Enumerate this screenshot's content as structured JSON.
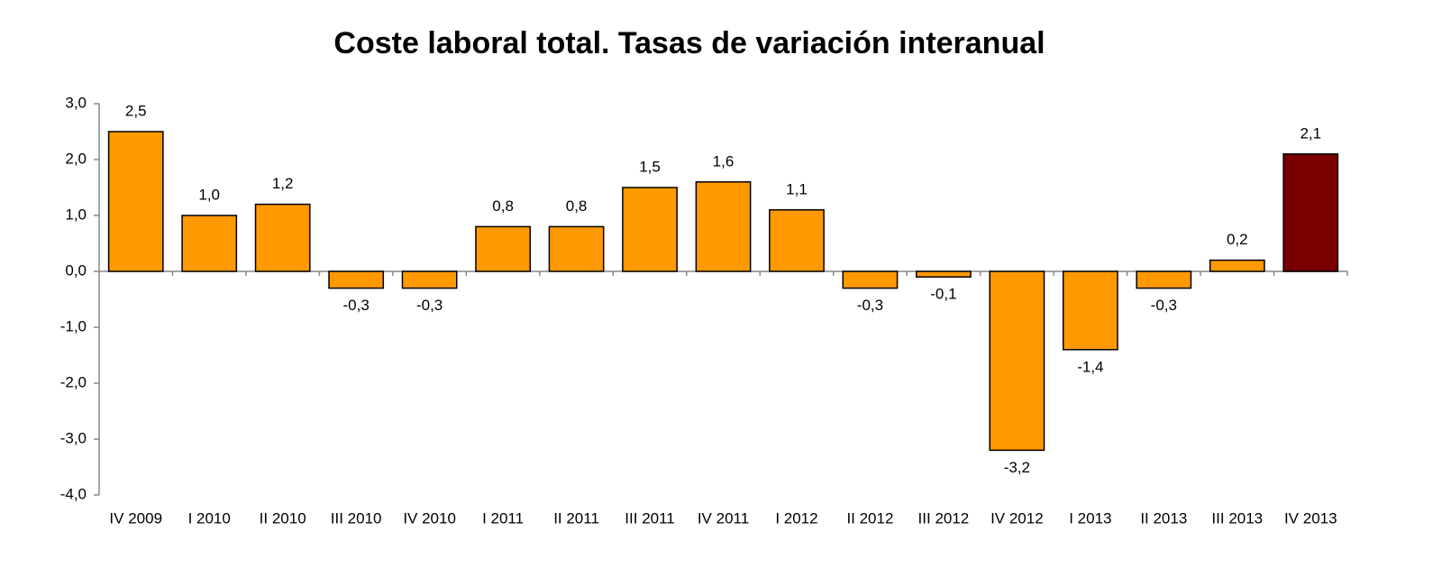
{
  "chart_data": {
    "type": "bar",
    "title": "Coste laboral total. Tasas de variación interanual",
    "categories": [
      "IV 2009",
      "I 2010",
      "II 2010",
      "III 2010",
      "IV 2010",
      "I 2011",
      "II 2011",
      "III 2011",
      "IV 2011",
      "I 2012",
      "II 2012",
      "III 2012",
      "IV 2012",
      "I 2013",
      "II 2013",
      "III 2013",
      "IV 2013"
    ],
    "values": [
      2.5,
      1.0,
      1.2,
      -0.3,
      -0.3,
      0.8,
      0.8,
      1.5,
      1.6,
      1.1,
      -0.3,
      -0.1,
      -3.2,
      -1.4,
      -0.3,
      0.2,
      2.1
    ],
    "value_labels": [
      "2,5",
      "1,0",
      "1,2",
      "-0,3",
      "-0,3",
      "0,8",
      "0,8",
      "1,5",
      "1,6",
      "1,1",
      "-0,3",
      "-0,1",
      "-3,2",
      "-1,4",
      "-0,3",
      "0,2",
      "2,1"
    ],
    "colors": [
      "#ff9900",
      "#ff9900",
      "#ff9900",
      "#ff9900",
      "#ff9900",
      "#ff9900",
      "#ff9900",
      "#ff9900",
      "#ff9900",
      "#ff9900",
      "#ff9900",
      "#ff9900",
      "#ff9900",
      "#ff9900",
      "#ff9900",
      "#ff9900",
      "#7a0000"
    ],
    "ylim": [
      -4,
      3
    ],
    "yticks": [
      {
        "value": -4,
        "label": "-4,0"
      },
      {
        "value": -3,
        "label": "-3,0"
      },
      {
        "value": -2,
        "label": "-2,0"
      },
      {
        "value": -1,
        "label": "-1,0"
      },
      {
        "value": 0,
        "label": "0,0"
      },
      {
        "value": 1,
        "label": "1,0"
      },
      {
        "value": 2,
        "label": "2,0"
      },
      {
        "value": 3,
        "label": "3,0"
      }
    ],
    "grid": false
  }
}
